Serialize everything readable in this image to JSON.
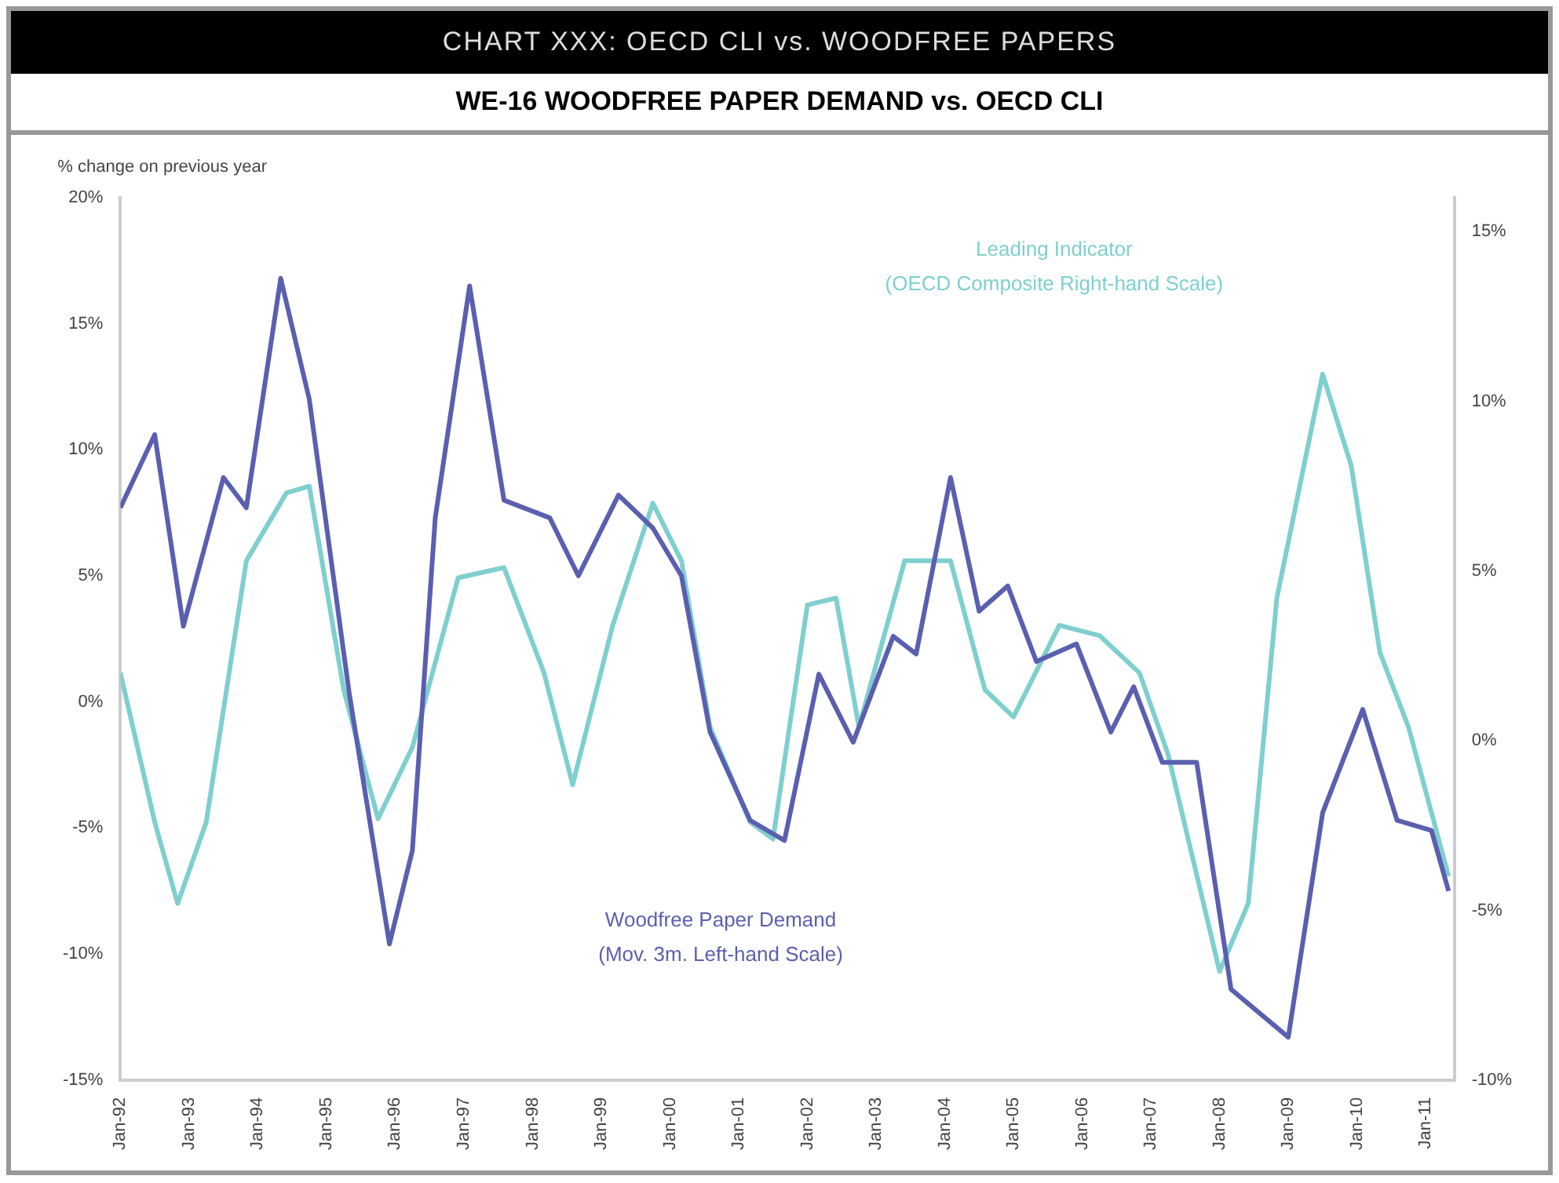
{
  "chart_data": {
    "type": "line",
    "title": "CHART XXX: OECD CLI vs. WOODFREE PAPERS",
    "subtitle": "WE-16 WOODFREE PAPER DEMAND vs. OECD CLI",
    "ylabel": "% change on previous year",
    "xlim": [
      "1992-01",
      "2011-06"
    ],
    "xticks": [
      {
        "value": "1992-01",
        "label": "Jan-92"
      },
      {
        "value": "1993-01",
        "label": "Jan-93"
      },
      {
        "value": "1994-01",
        "label": "Jan-94"
      },
      {
        "value": "1995-01",
        "label": "Jan-95"
      },
      {
        "value": "1996-01",
        "label": "Jan-96"
      },
      {
        "value": "1997-01",
        "label": "Jan-97"
      },
      {
        "value": "1998-01",
        "label": "Jan-98"
      },
      {
        "value": "1999-01",
        "label": "Jan-99"
      },
      {
        "value": "2000-01",
        "label": "Jan-00"
      },
      {
        "value": "2001-01",
        "label": "Jan-01"
      },
      {
        "value": "2002-01",
        "label": "Jan-02"
      },
      {
        "value": "2003-01",
        "label": "Jan-03"
      },
      {
        "value": "2004-01",
        "label": "Jan-04"
      },
      {
        "value": "2005-01",
        "label": "Jan-05"
      },
      {
        "value": "2006-01",
        "label": "Jan-06"
      },
      {
        "value": "2007-01",
        "label": "Jan-07"
      },
      {
        "value": "2008-01",
        "label": "Jan-08"
      },
      {
        "value": "2009-01",
        "label": "Jan-09"
      },
      {
        "value": "2010-01",
        "label": "Jan-10"
      },
      {
        "value": "2011-01",
        "label": "Jan-11"
      }
    ],
    "ylim": [
      -15,
      20
    ],
    "yticks": [
      {
        "value": -15,
        "label": "-15%"
      },
      {
        "value": -10,
        "label": "-10%"
      },
      {
        "value": -5,
        "label": "-5%"
      },
      {
        "value": 0,
        "label": "0%"
      },
      {
        "value": 5,
        "label": "5%"
      },
      {
        "value": 10,
        "label": "10%"
      },
      {
        "value": 15,
        "label": "15%"
      },
      {
        "value": 20,
        "label": "20%"
      }
    ],
    "y2lim": [
      -10,
      16
    ],
    "y2ticks": [
      {
        "value": -10,
        "label": "-10%"
      },
      {
        "value": -5,
        "label": "-5%"
      },
      {
        "value": 0,
        "label": "0%"
      },
      {
        "value": 5,
        "label": "5%"
      },
      {
        "value": 10,
        "label": "10%"
      },
      {
        "value": 15,
        "label": "15%"
      }
    ],
    "series": [
      {
        "name": "Woodfree Paper Demand",
        "color": "#5a5fb0",
        "x": [
          "1992-01",
          "1992-07",
          "1992-12",
          "1993-07",
          "1993-11",
          "1994-05",
          "1994-10",
          "1995-05",
          "1995-12",
          "1996-04",
          "1996-08",
          "1997-02",
          "1997-08",
          "1998-04",
          "1998-09",
          "1999-04",
          "1999-10",
          "2000-03",
          "2000-08",
          "2001-03",
          "2001-09",
          "2002-03",
          "2002-09",
          "2003-04",
          "2003-08",
          "2004-02",
          "2004-07",
          "2004-12",
          "2005-05",
          "2005-12",
          "2006-06",
          "2006-10",
          "2007-03",
          "2007-09",
          "2008-03",
          "2009-01",
          "2009-07",
          "2010-02",
          "2010-08",
          "2011-02",
          "2011-05"
        ],
        "values": [
          7.7,
          10.6,
          3.0,
          8.9,
          7.7,
          16.8,
          12.0,
          0.3,
          -9.6,
          -5.9,
          7.3,
          16.5,
          8.0,
          7.3,
          5.0,
          8.2,
          6.9,
          5.0,
          -1.2,
          -4.7,
          -5.5,
          1.1,
          -1.6,
          2.6,
          1.9,
          8.9,
          3.6,
          4.6,
          1.6,
          2.3,
          -1.2,
          0.6,
          -2.4,
          -2.4,
          -11.4,
          -13.3,
          -4.4,
          -0.3,
          -4.7,
          -5.1,
          -7.5
        ]
      },
      {
        "name": "Leading Indicator",
        "color": "#7fcfcf",
        "axis": "y2",
        "x": [
          "1992-01",
          "1992-07",
          "1992-11",
          "1993-04",
          "1993-11",
          "1994-06",
          "1994-10",
          "1995-04",
          "1995-10",
          "1996-04",
          "1996-12",
          "1997-08",
          "1998-03",
          "1998-08",
          "1999-03",
          "1999-10",
          "2000-03",
          "2000-08",
          "2001-03",
          "2001-07",
          "2002-01",
          "2002-06",
          "2002-10",
          "2003-06",
          "2004-02",
          "2004-08",
          "2005-01",
          "2005-09",
          "2006-04",
          "2006-11",
          "2007-04",
          "2008-01",
          "2008-06",
          "2008-11",
          "2009-07",
          "2009-12",
          "2010-05",
          "2010-10",
          "2011-05"
        ],
        "values": [
          2.0,
          -2.4,
          -4.8,
          -2.4,
          5.3,
          7.3,
          7.5,
          1.5,
          -2.3,
          -0.2,
          4.8,
          5.1,
          2.0,
          -1.3,
          3.4,
          7.0,
          5.3,
          0.4,
          -2.4,
          -2.9,
          4.0,
          4.2,
          0.4,
          5.3,
          5.3,
          1.5,
          0.7,
          3.4,
          3.1,
          2.0,
          -0.4,
          -6.8,
          -4.8,
          4.2,
          10.8,
          8.1,
          2.6,
          0.4,
          -4.0
        ]
      }
    ],
    "annotations": [
      "(Mov. 3m. Left-hand Scale)",
      "(OECD Composite Right-hand Scale)"
    ]
  }
}
